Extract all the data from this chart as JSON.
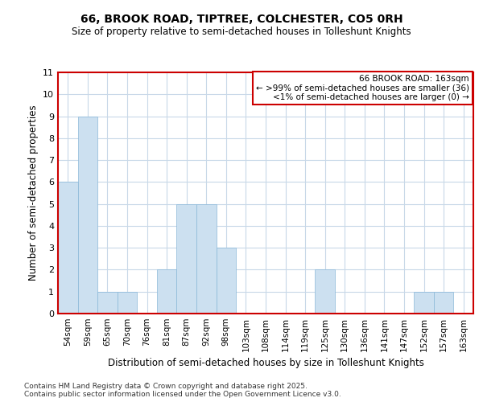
{
  "title1": "66, BROOK ROAD, TIPTREE, COLCHESTER, CO5 0RH",
  "title2": "Size of property relative to semi-detached houses in Tolleshunt Knights",
  "xlabel": "Distribution of semi-detached houses by size in Tolleshunt Knights",
  "ylabel": "Number of semi-detached properties",
  "bin_labels": [
    "54sqm",
    "59sqm",
    "65sqm",
    "70sqm",
    "76sqm",
    "81sqm",
    "87sqm",
    "92sqm",
    "98sqm",
    "103sqm",
    "108sqm",
    "114sqm",
    "119sqm",
    "125sqm",
    "130sqm",
    "136sqm",
    "141sqm",
    "147sqm",
    "152sqm",
    "157sqm",
    "163sqm"
  ],
  "values": [
    6,
    9,
    1,
    1,
    0,
    2,
    5,
    5,
    3,
    0,
    0,
    0,
    0,
    2,
    0,
    0,
    0,
    0,
    1,
    1,
    0
  ],
  "bar_color": "#cce0f0",
  "bar_edge_color": "#8ab8d8",
  "highlight_index": 20,
  "highlight_edge_color": "#cc0000",
  "box_color": "#cc0000",
  "ylim": [
    0,
    11
  ],
  "yticks": [
    0,
    1,
    2,
    3,
    4,
    5,
    6,
    7,
    8,
    9,
    10,
    11
  ],
  "legend_title": "66 BROOK ROAD: 163sqm",
  "legend_line1": "← >99% of semi-detached houses are smaller (36)",
  "legend_line2": "<1% of semi-detached houses are larger (0) →",
  "footer1": "Contains HM Land Registry data © Crown copyright and database right 2025.",
  "footer2": "Contains public sector information licensed under the Open Government Licence v3.0.",
  "background_color": "#ffffff",
  "grid_color": "#c8d8e8"
}
